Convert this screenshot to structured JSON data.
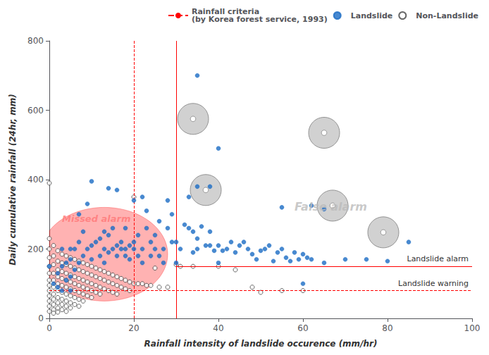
{
  "chart_data": {
    "type": "scatter",
    "xlabel": "Rainfall intensity of landslide occurence (mm/hr)",
    "ylabel": "Daily cumulative rainfall (24hr, mm)",
    "xlim": [
      0,
      100
    ],
    "ylim": [
      0,
      800
    ],
    "xticks": [
      0,
      20,
      40,
      60,
      80,
      100
    ],
    "yticks": [
      0,
      200,
      400,
      600,
      800
    ],
    "grid": false,
    "legend": "upper right",
    "criteria": {
      "name": "Rainfall criteria\n(by Korea forest service, 1993)",
      "color": "red",
      "line_style": "dashed",
      "x_dashed": 20,
      "x_solid": 30,
      "alarm_y": 150,
      "warning_y": 80,
      "alarm_label": "Landslide alarm",
      "warning_label": "Landslide warning"
    },
    "circles": [
      [
        34,
        575
      ],
      [
        37,
        370
      ],
      [
        65,
        535
      ],
      [
        67,
        325
      ],
      [
        79,
        248
      ]
    ],
    "missed_ellipse": {
      "cx": 13,
      "cy": 185,
      "w": 30,
      "h": 270,
      "color": "red"
    },
    "annotations": [
      {
        "text": "Missed alarm",
        "x": 3,
        "y": 275,
        "color": "#ff7777"
      },
      {
        "text": "False alarm",
        "x": 58,
        "y": 305,
        "color": "#bbbbbb"
      }
    ],
    "series": [
      {
        "name": "Landslide",
        "color": "#1a6cc4",
        "marker": "circle",
        "values": [
          [
            0,
            150
          ],
          [
            1,
            100
          ],
          [
            2,
            130
          ],
          [
            2,
            90
          ],
          [
            3,
            80
          ],
          [
            3,
            200
          ],
          [
            3,
            150
          ],
          [
            4,
            160
          ],
          [
            4,
            110
          ],
          [
            5,
            170
          ],
          [
            5,
            120
          ],
          [
            5,
            200
          ],
          [
            5,
            80
          ],
          [
            6,
            140
          ],
          [
            6,
            200
          ],
          [
            7,
            160
          ],
          [
            7,
            220
          ],
          [
            7,
            300
          ],
          [
            8,
            180
          ],
          [
            8,
            250
          ],
          [
            9,
            200
          ],
          [
            9,
            330
          ],
          [
            10,
            210
          ],
          [
            10,
            170
          ],
          [
            10,
            395
          ],
          [
            11,
            220
          ],
          [
            12,
            230
          ],
          [
            12,
            180
          ],
          [
            13,
            200
          ],
          [
            13,
            250
          ],
          [
            13,
            160
          ],
          [
            14,
            240
          ],
          [
            14,
            190
          ],
          [
            14,
            375
          ],
          [
            15,
            200
          ],
          [
            15,
            260
          ],
          [
            16,
            210
          ],
          [
            16,
            180
          ],
          [
            16,
            370
          ],
          [
            17,
            220
          ],
          [
            17,
            200
          ],
          [
            18,
            200
          ],
          [
            18,
            260
          ],
          [
            18,
            180
          ],
          [
            19,
            210
          ],
          [
            19,
            170
          ],
          [
            20,
            220
          ],
          [
            20,
            200
          ],
          [
            20,
            340
          ],
          [
            21,
            240
          ],
          [
            21,
            180
          ],
          [
            22,
            350
          ],
          [
            22,
            200
          ],
          [
            22,
            160
          ],
          [
            23,
            260
          ],
          [
            23,
            310
          ],
          [
            24,
            180
          ],
          [
            24,
            220
          ],
          [
            25,
            240
          ],
          [
            25,
            200
          ],
          [
            26,
            180
          ],
          [
            26,
            280
          ],
          [
            27,
            200
          ],
          [
            27,
            160
          ],
          [
            28,
            260
          ],
          [
            28,
            340
          ],
          [
            29,
            300
          ],
          [
            29,
            220
          ],
          [
            30,
            220
          ],
          [
            30,
            160
          ],
          [
            31,
            200
          ],
          [
            32,
            270
          ],
          [
            33,
            260
          ],
          [
            33,
            350
          ],
          [
            34,
            190
          ],
          [
            34,
            250
          ],
          [
            35,
            230
          ],
          [
            35,
            200
          ],
          [
            36,
            265
          ],
          [
            37,
            210
          ],
          [
            38,
            210
          ],
          [
            38,
            250
          ],
          [
            39,
            195
          ],
          [
            40,
            210
          ],
          [
            40,
            160
          ],
          [
            41,
            195
          ],
          [
            42,
            200
          ],
          [
            43,
            220
          ],
          [
            44,
            190
          ],
          [
            45,
            210
          ],
          [
            46,
            220
          ],
          [
            47,
            200
          ],
          [
            48,
            185
          ],
          [
            49,
            170
          ],
          [
            50,
            195
          ],
          [
            51,
            200
          ],
          [
            52,
            210
          ],
          [
            53,
            165
          ],
          [
            54,
            190
          ],
          [
            55,
            200
          ],
          [
            56,
            175
          ],
          [
            57,
            165
          ],
          [
            58,
            190
          ],
          [
            59,
            170
          ],
          [
            60,
            185
          ],
          [
            61,
            175
          ],
          [
            62,
            170
          ],
          [
            65,
            160
          ],
          [
            70,
            170
          ],
          [
            75,
            170
          ],
          [
            80,
            165
          ],
          [
            85,
            220
          ],
          [
            35,
            700
          ],
          [
            40,
            490
          ],
          [
            35,
            380
          ],
          [
            38,
            380
          ],
          [
            55,
            320
          ],
          [
            62,
            325
          ],
          [
            65,
            315
          ],
          [
            60,
            100
          ]
        ]
      },
      {
        "name": "Non-Landslide",
        "color": "#444444",
        "marker": "hollow_circle",
        "values": [
          [
            0,
            390
          ],
          [
            0,
            230
          ],
          [
            0,
            200
          ],
          [
            0,
            175
          ],
          [
            0,
            150
          ],
          [
            0,
            130
          ],
          [
            0,
            110
          ],
          [
            0,
            95
          ],
          [
            0,
            80
          ],
          [
            0,
            65
          ],
          [
            0,
            50
          ],
          [
            0,
            35
          ],
          [
            0,
            20
          ],
          [
            1,
            210
          ],
          [
            1,
            180
          ],
          [
            1,
            155
          ],
          [
            1,
            130
          ],
          [
            1,
            110
          ],
          [
            1,
            90
          ],
          [
            1,
            70
          ],
          [
            1,
            55
          ],
          [
            1,
            40
          ],
          [
            1,
            25
          ],
          [
            1,
            15
          ],
          [
            2,
            195
          ],
          [
            2,
            165
          ],
          [
            2,
            140
          ],
          [
            2,
            120
          ],
          [
            2,
            100
          ],
          [
            2,
            80
          ],
          [
            2,
            60
          ],
          [
            2,
            45
          ],
          [
            2,
            30
          ],
          [
            2,
            18
          ],
          [
            3,
            185
          ],
          [
            3,
            160
          ],
          [
            3,
            135
          ],
          [
            3,
            115
          ],
          [
            3,
            95
          ],
          [
            3,
            75
          ],
          [
            3,
            55
          ],
          [
            3,
            40
          ],
          [
            3,
            25
          ],
          [
            4,
            180
          ],
          [
            4,
            155
          ],
          [
            4,
            130
          ],
          [
            4,
            110
          ],
          [
            4,
            90
          ],
          [
            4,
            70
          ],
          [
            4,
            50
          ],
          [
            4,
            35
          ],
          [
            4,
            20
          ],
          [
            5,
            175
          ],
          [
            5,
            150
          ],
          [
            5,
            125
          ],
          [
            5,
            105
          ],
          [
            5,
            85
          ],
          [
            5,
            65
          ],
          [
            5,
            45
          ],
          [
            5,
            30
          ],
          [
            6,
            170
          ],
          [
            6,
            145
          ],
          [
            6,
            120
          ],
          [
            6,
            100
          ],
          [
            6,
            80
          ],
          [
            6,
            60
          ],
          [
            6,
            40
          ],
          [
            7,
            165
          ],
          [
            7,
            140
          ],
          [
            7,
            115
          ],
          [
            7,
            95
          ],
          [
            7,
            75
          ],
          [
            7,
            55
          ],
          [
            7,
            35
          ],
          [
            8,
            160
          ],
          [
            8,
            135
          ],
          [
            8,
            110
          ],
          [
            8,
            90
          ],
          [
            8,
            70
          ],
          [
            8,
            50
          ],
          [
            9,
            155
          ],
          [
            9,
            130
          ],
          [
            9,
            105
          ],
          [
            9,
            85
          ],
          [
            9,
            65
          ],
          [
            10,
            150
          ],
          [
            10,
            125
          ],
          [
            10,
            100
          ],
          [
            10,
            80
          ],
          [
            10,
            60
          ],
          [
            11,
            145
          ],
          [
            11,
            120
          ],
          [
            11,
            95
          ],
          [
            11,
            75
          ],
          [
            12,
            140
          ],
          [
            12,
            115
          ],
          [
            12,
            90
          ],
          [
            12,
            70
          ],
          [
            13,
            135
          ],
          [
            13,
            110
          ],
          [
            13,
            85
          ],
          [
            14,
            130
          ],
          [
            14,
            105
          ],
          [
            14,
            80
          ],
          [
            15,
            125
          ],
          [
            15,
            100
          ],
          [
            15,
            75
          ],
          [
            16,
            120
          ],
          [
            16,
            95
          ],
          [
            16,
            70
          ],
          [
            17,
            115
          ],
          [
            17,
            90
          ],
          [
            18,
            110
          ],
          [
            18,
            85
          ],
          [
            19,
            105
          ],
          [
            19,
            80
          ],
          [
            20,
            100
          ],
          [
            20,
            350
          ],
          [
            21,
            100
          ],
          [
            22,
            100
          ],
          [
            23,
            95
          ],
          [
            24,
            95
          ],
          [
            25,
            145
          ],
          [
            26,
            90
          ],
          [
            28,
            90
          ],
          [
            30,
            155
          ],
          [
            31,
            150
          ],
          [
            34,
            150
          ],
          [
            40,
            150
          ],
          [
            44,
            140
          ],
          [
            48,
            90
          ],
          [
            50,
            75
          ],
          [
            55,
            80
          ],
          [
            60,
            80
          ]
        ]
      }
    ]
  }
}
